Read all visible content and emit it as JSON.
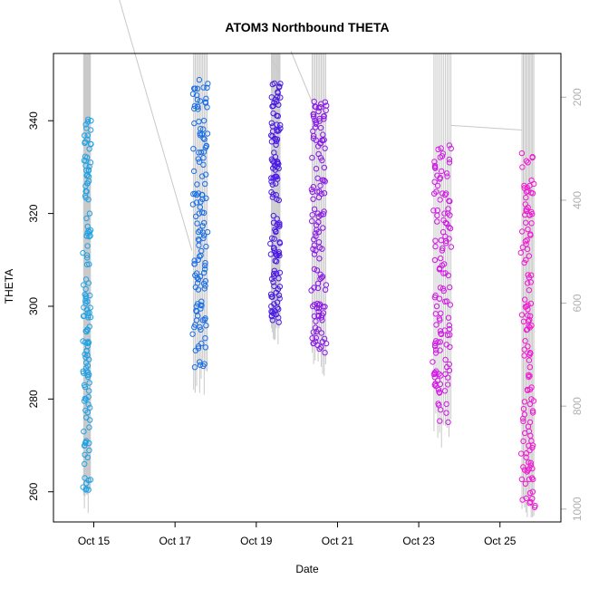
{
  "chart_data": {
    "type": "scatter",
    "title": "ATOM3 Northbound THETA",
    "xlabel": "Date",
    "ylabel": "THETA",
    "xlim": [
      "Oct 14 00:10",
      "Oct 26 12:00"
    ],
    "ylim": [
      253.5,
      354.5
    ],
    "x_ticks": [
      "Oct 15",
      "Oct 17",
      "Oct 19",
      "Oct 21",
      "Oct 23",
      "Oct 25"
    ],
    "y_ticks": [
      260,
      280,
      300,
      320,
      340
    ],
    "secondary_axis": {
      "side": "right",
      "label": "",
      "ticks": [
        200,
        400,
        600,
        800,
        1000
      ],
      "range": [
        1025,
        115
      ],
      "color": "#b0b0b0"
    },
    "grid": false,
    "series": [
      {
        "marker": "open-circle",
        "color": "#1fa2e6",
        "date": "Oct 14",
        "x_start": "Oct 14 18:00",
        "x_end": "Oct 14 22:00",
        "theta_min": 260,
        "theta_max": 340.5,
        "profile_line_top_pressure": 120,
        "points": [
          [
            0.0,
            261
          ],
          [
            0.05,
            263
          ],
          [
            0.08,
            266
          ],
          [
            0.12,
            268
          ],
          [
            0.15,
            270
          ],
          [
            0.18,
            273
          ],
          [
            0.22,
            276
          ],
          [
            0.26,
            280
          ],
          [
            0.3,
            283
          ],
          [
            0.34,
            286
          ],
          [
            0.38,
            289
          ],
          [
            0.42,
            292
          ],
          [
            0.46,
            295
          ],
          [
            0.5,
            298
          ],
          [
            0.54,
            301
          ],
          [
            0.58,
            305
          ],
          [
            0.62,
            309
          ],
          [
            0.65,
            311
          ],
          [
            0.68,
            313
          ],
          [
            0.72,
            316
          ],
          [
            0.76,
            320
          ],
          [
            0.8,
            323
          ],
          [
            0.84,
            327
          ],
          [
            0.88,
            331
          ],
          [
            0.92,
            335
          ],
          [
            0.96,
            338
          ],
          [
            1.0,
            340
          ]
        ]
      },
      {
        "marker": "open-circle",
        "color": "#1a6fe6",
        "date": "Oct 17",
        "x_start": "Oct 17 11:00",
        "x_end": "Oct 17 19:00",
        "theta_min": 286.5,
        "theta_max": 349.5,
        "profile_line_top_pressure": 120,
        "points": [
          [
            0.0,
            294
          ],
          [
            0.08,
            296
          ],
          [
            0.15,
            300
          ],
          [
            0.22,
            305
          ],
          [
            0.3,
            310
          ],
          [
            0.38,
            316
          ],
          [
            0.45,
            320
          ],
          [
            0.52,
            324
          ],
          [
            0.6,
            328
          ],
          [
            0.68,
            332
          ],
          [
            0.75,
            336
          ],
          [
            0.82,
            340
          ],
          [
            0.9,
            344
          ],
          [
            1.0,
            348
          ],
          [
            0.35,
            288
          ],
          [
            0.55,
            292
          ],
          [
            0.7,
            297
          ],
          [
            0.85,
            308
          ],
          [
            0.95,
            316
          ]
        ]
      },
      {
        "marker": "open-circle",
        "color": "#4a1ae6",
        "date": "Oct 19",
        "x_start": "Oct 19 09:00",
        "x_end": "Oct 19 14:00",
        "theta_min": 296.5,
        "theta_max": 349.5,
        "profile_line_top_pressure": 120,
        "points": [
          [
            0.0,
            298
          ],
          [
            0.1,
            302
          ],
          [
            0.2,
            307
          ],
          [
            0.3,
            312
          ],
          [
            0.4,
            318
          ],
          [
            0.5,
            324
          ],
          [
            0.6,
            330
          ],
          [
            0.7,
            336
          ],
          [
            0.8,
            341
          ],
          [
            0.9,
            345
          ],
          [
            1.0,
            348
          ],
          [
            0.15,
            297
          ],
          [
            0.45,
            316
          ],
          [
            0.65,
            328
          ],
          [
            0.85,
            346
          ]
        ]
      },
      {
        "marker": "open-circle",
        "color": "#8a1ae6",
        "date": "Oct 20",
        "x_start": "Oct 20 09:00",
        "x_end": "Oct 20 17:00",
        "theta_min": 290,
        "theta_max": 345,
        "profile_line_top_pressure": 120,
        "points": [
          [
            0.0,
            300
          ],
          [
            0.1,
            304
          ],
          [
            0.2,
            308
          ],
          [
            0.3,
            312
          ],
          [
            0.4,
            316
          ],
          [
            0.5,
            320
          ],
          [
            0.6,
            326
          ],
          [
            0.7,
            332
          ],
          [
            0.8,
            337
          ],
          [
            0.9,
            341
          ],
          [
            1.0,
            344
          ],
          [
            0.45,
            298
          ],
          [
            0.55,
            295
          ],
          [
            0.9,
            290
          ],
          [
            0.95,
            293
          ],
          [
            0.25,
            343
          ]
        ]
      },
      {
        "marker": "open-circle",
        "color": "#d21ae6",
        "date": "Oct 23",
        "x_start": "Oct 23 09:00",
        "x_end": "Oct 23 19:00",
        "theta_min": 275,
        "theta_max": 335,
        "profile_line_top_pressure": 120,
        "points": [
          [
            0.0,
            288
          ],
          [
            0.08,
            292
          ],
          [
            0.16,
            296
          ],
          [
            0.24,
            300
          ],
          [
            0.32,
            304
          ],
          [
            0.4,
            308
          ],
          [
            0.48,
            312
          ],
          [
            0.56,
            316
          ],
          [
            0.64,
            320
          ],
          [
            0.72,
            324
          ],
          [
            0.8,
            328
          ],
          [
            0.88,
            331
          ],
          [
            0.96,
            334
          ],
          [
            0.1,
            286
          ],
          [
            0.2,
            282
          ],
          [
            0.3,
            279
          ],
          [
            0.7,
            277
          ],
          [
            0.8,
            275
          ],
          [
            0.05,
            330
          ],
          [
            0.15,
            326
          ]
        ]
      },
      {
        "marker": "open-circle",
        "color": "#f01ad2",
        "date": "Oct 25",
        "x_start": "Oct 25 13:00",
        "x_end": "Oct 25 20:00",
        "theta_min": 256.5,
        "theta_max": 333,
        "profile_line_top_pressure": 120,
        "points": [
          [
            0.0,
            333
          ],
          [
            0.06,
            330
          ],
          [
            0.12,
            326
          ],
          [
            0.18,
            322
          ],
          [
            0.24,
            318
          ],
          [
            0.3,
            314
          ],
          [
            0.36,
            310
          ],
          [
            0.42,
            305
          ],
          [
            0.48,
            300
          ],
          [
            0.54,
            295
          ],
          [
            0.6,
            290
          ],
          [
            0.66,
            285
          ],
          [
            0.72,
            280
          ],
          [
            0.78,
            275
          ],
          [
            0.84,
            270
          ],
          [
            0.9,
            265
          ],
          [
            0.95,
            260
          ],
          [
            1.0,
            257
          ]
        ]
      }
    ],
    "connector_lines": [
      [
        [
          "Oct 15 12:00",
          370
        ],
        [
          "Oct 17 10:00",
          312
        ]
      ],
      [
        [
          "Oct 19 09:30",
          353
        ],
        [
          "Oct 19 14:00",
          350
        ]
      ],
      [
        [
          "Oct 19 20:30",
          355
        ],
        [
          "Oct 20 09:00",
          344
        ]
      ],
      [
        [
          "Oct 23 19:00",
          339
        ],
        [
          "Oct 25 13:00",
          338
        ]
      ]
    ],
    "line_color": "#c8c8c8"
  }
}
